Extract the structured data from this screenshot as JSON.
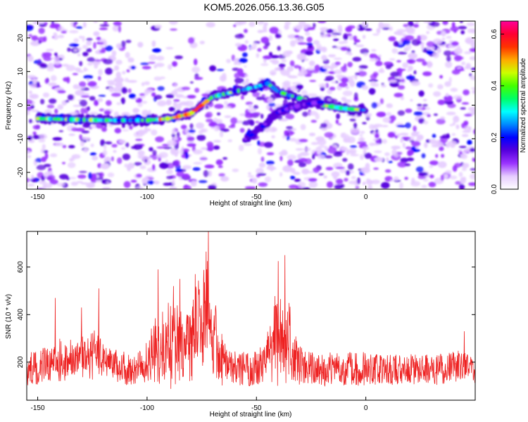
{
  "title": "KOM5.2026.056.13.36.G05",
  "chart_data": [
    {
      "type": "heatmap",
      "xlabel": "Height of straight line (km)",
      "ylabel": "Frequency (Hz)",
      "xlim": [
        -155,
        50
      ],
      "ylim": [
        -25,
        25
      ],
      "xticks": [
        -150,
        -100,
        -50,
        0
      ],
      "yticks": [
        -20,
        -10,
        0,
        10,
        20
      ],
      "colorbar": {
        "label": "Normalized spectral amplitude",
        "range": [
          0.0,
          0.65
        ],
        "ticks": [
          0.0,
          0.2,
          0.4,
          0.6
        ],
        "colors": [
          "#ffffff",
          "#e6ccff",
          "#9a33ff",
          "#5500dd",
          "#0000ff",
          "#0088ff",
          "#00ffff",
          "#00ff66",
          "#44ff00",
          "#ccff00",
          "#ffaa00",
          "#ff3300",
          "#ff0033",
          "#ff0099"
        ]
      },
      "features": [
        {
          "name": "main_track",
          "points": [
            [
              -150,
              -4
            ],
            [
              -120,
              -4.5
            ],
            [
              -100,
              -4.5
            ],
            [
              -90,
              -4
            ],
            [
              -80,
              -2.5
            ],
            [
              -75,
              0
            ],
            [
              -70,
              2.5
            ],
            [
              -60,
              4
            ],
            [
              -50,
              5.5
            ],
            [
              -45,
              6.5
            ],
            [
              -40,
              4
            ],
            [
              -30,
              2
            ],
            [
              -20,
              0
            ],
            [
              -10,
              -1
            ],
            [
              0,
              -1.5
            ]
          ],
          "peak_amplitude": 0.6
        },
        {
          "name": "lower_branch",
          "points": [
            [
              -55,
              -10
            ],
            [
              -50,
              -8
            ],
            [
              -45,
              -5
            ],
            [
              -40,
              -2
            ],
            [
              -30,
              0
            ],
            [
              -20,
              1
            ]
          ],
          "peak_amplitude": 0.3
        }
      ]
    },
    {
      "type": "line",
      "xlabel": "Height of straight line (km)",
      "ylabel": "SNR (10 * v/v)",
      "xlim": [
        -155,
        50
      ],
      "ylim": [
        40,
        750
      ],
      "xticks": [
        -150,
        -100,
        -50,
        0
      ],
      "yticks": [
        200,
        400,
        600
      ],
      "series": [
        {
          "name": "SNR",
          "color": "#ee2222",
          "x_range": [
            -155,
            50
          ],
          "baseline": 150,
          "noise_amplitude": 90,
          "peaks": [
            {
              "x": -72,
              "value": 750
            },
            {
              "x": -73,
              "value": 665
            },
            {
              "x": -37,
              "value": 650
            },
            {
              "x": -40,
              "value": 625
            },
            {
              "x": -95,
              "value": 590
            },
            {
              "x": -85,
              "value": 550
            },
            {
              "x": -78,
              "value": 570
            },
            {
              "x": -122,
              "value": 510
            },
            {
              "x": -142,
              "value": 470
            },
            {
              "x": -130,
              "value": 430
            },
            {
              "x": -88,
              "value": 520
            },
            {
              "x": 45,
              "value": 330
            }
          ]
        }
      ]
    }
  ]
}
